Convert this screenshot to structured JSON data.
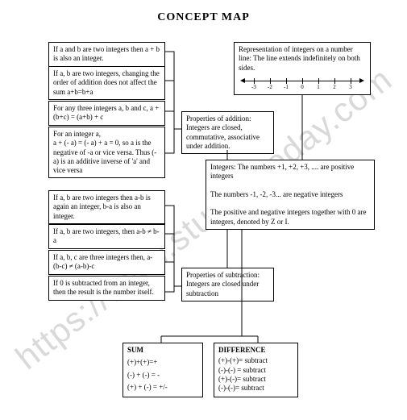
{
  "title": "CONCEPT MAP",
  "watermark": "https://www.studiestoday.com",
  "leftBoxes": {
    "closure_add": "If a and b are two integers then a + b is also an integer.",
    "commutative": "If a, b are two integers, changing the order of addition does not affect the sum a+b=b+a",
    "associative": "For any three integers a, b and c, a + (b+c) = (a+b) + c",
    "inverse": "For an integer a,\na + (- a) = (- a) + a = 0, so a is the negative of -a or vice versa. Thus (-a) is an additive inverse of 'a' and vice versa",
    "closure_sub": "If a, b are two integers then a-b is again an integer, b-a is also an integer.",
    "noncomm_sub": "If a, b are two integers, then a-b ≠ b-a",
    "nonassoc_sub": "If a, b, c are three integers then, a-(b-c) ≠ (a-b)-c",
    "sub_zero": "If 0 is subtracted from an integer, then the result is the number itself."
  },
  "midBoxes": {
    "props_add": "Properties of addition: Integers are closed, commutative, associative under addition.",
    "props_sub": "Properties of subtraction: Integers are closed under subtraction"
  },
  "rightBoxes": {
    "numline_text": "Representation of integers on a number line: The line extends indefinitely on both sides.",
    "integers_def": "Integers: The numbers +1, +2, +3, .... are positive integers\n\nThe numbers -1, -2, -3... are negative integers\n\nThe positive and negative integers together with 0 are integers, denoted by Z or I."
  },
  "bottomBoxes": {
    "sum": {
      "title": "SUM",
      "lines": [
        "(+)+(+)=+",
        "(-) + (-) = -",
        "(+) + (-) = +/-"
      ]
    },
    "diff": {
      "title": "DIFFERENCE",
      "lines": [
        "(+)-(+)= subtract",
        "(-)-(-) = subtract",
        "(+)-(-)= subtract",
        "(-)-(-)= subtract"
      ]
    }
  },
  "numberline": {
    "ticks": [
      "-3",
      "-2",
      "-1",
      "0",
      "1",
      "2",
      "3"
    ]
  },
  "styling": {
    "border_color": "#000000",
    "background": "#ffffff",
    "font": "Times New Roman",
    "box_font_size": 9,
    "watermark_color": "#d9d9d9"
  }
}
